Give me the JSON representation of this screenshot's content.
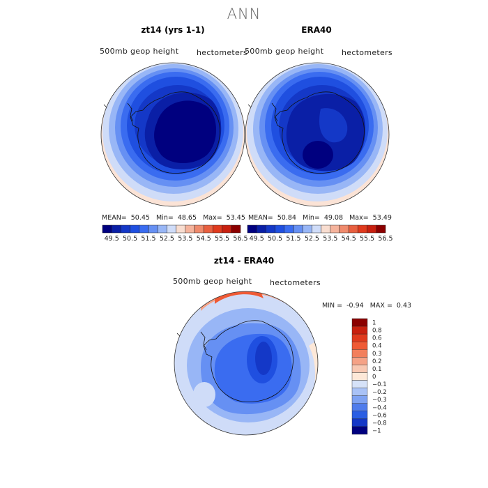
{
  "main_title": "ANN",
  "panels": [
    {
      "title": "zt14 (yrs 1-1)",
      "left_label": "500mb geop height",
      "right_label": "hectometers",
      "stats": {
        "mean_label": "MEAN=",
        "mean": "50.45",
        "min_label": "Min=",
        "min": "48.65",
        "max_label": "Max=",
        "max": "53.45"
      }
    },
    {
      "title": "ERA40",
      "left_label": "500mb geop height",
      "right_label": "hectometers",
      "stats": {
        "mean_label": "MEAN=",
        "mean": "50.84",
        "min_label": "Min=",
        "min": "49.08",
        "max_label": "Max=",
        "max": "53.49"
      }
    }
  ],
  "abs_colorbar": {
    "ticks": [
      "49.5",
      "50.5",
      "51.5",
      "52.5",
      "53.5",
      "54.5",
      "55.5",
      "56.5"
    ],
    "colors": [
      "#00007f",
      "#0a1fa6",
      "#1438c7",
      "#1f4fe0",
      "#3a6cf0",
      "#6690f3",
      "#98b6f6",
      "#cfdcf8",
      "#f8ddd0",
      "#f5b39c",
      "#ef8a6c",
      "#e85f3f",
      "#e03a1d",
      "#c8200f",
      "#8b0000"
    ]
  },
  "diff_panel": {
    "title": "zt14 - ERA40",
    "left_label": "500mb geop height",
    "right_label": "hectometers",
    "min_label": "MIN =",
    "min": "-0.94",
    "max_label": "MAX =",
    "max": "0.43"
  },
  "diff_colorbar": {
    "ticks": [
      "1",
      "0.8",
      "0.6",
      "0.4",
      "0.3",
      "0.2",
      "0.1",
      "0",
      "−0.1",
      "−0.2",
      "−0.3",
      "−0.4",
      "−0.6",
      "−0.8",
      "−1"
    ],
    "colors": [
      "#8b0000",
      "#c8200f",
      "#e03a1d",
      "#ef5a35",
      "#f27f5c",
      "#f5a286",
      "#f8c8b2",
      "#fde8d8",
      "#d6e2f8",
      "#a9c2f6",
      "#7ea2f2",
      "#4f7cec",
      "#2a5ee3",
      "#1438c7",
      "#00007f"
    ]
  },
  "map_colors": {
    "ocean_edge": "#fbe3d6",
    "outer": "#cfdcf8",
    "ring1": "#98b6f6",
    "ring2": "#6690f3",
    "ring3": "#3a6cf0",
    "ring4": "#1f4fe0",
    "ring5": "#1438c7",
    "ring6": "#0a1fa6",
    "core": "#00007f",
    "diff_bg": "#cfdcf8",
    "diff_pos1": "#fde8d8",
    "diff_pos2": "#f5a286",
    "diff_pos3": "#ef5a35"
  }
}
